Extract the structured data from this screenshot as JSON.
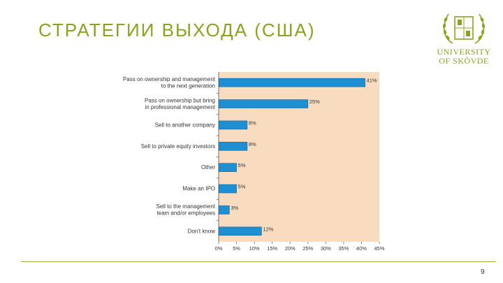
{
  "slide": {
    "title": "СТРАТЕГИИ ВЫХОДА (США)",
    "page_number": "9",
    "accent_color": "#8aa31f"
  },
  "logo": {
    "line1": "UNIVERSITY",
    "line2": "OF SKÖVDE",
    "icon": "laurel-wreath-crest-icon"
  },
  "chart_data": {
    "type": "bar",
    "orientation": "horizontal",
    "categories": [
      [
        "Pass on ownership and management",
        "to the next generation"
      ],
      [
        "Pass on ownership but bring",
        "in professional management"
      ],
      [
        "Sell to another company"
      ],
      [
        "Sell to private equity investors"
      ],
      [
        "Other"
      ],
      [
        "Make an IPO"
      ],
      [
        "Sell to the management",
        "team and/or employees"
      ],
      [
        "Don't know"
      ]
    ],
    "values": [
      41,
      25,
      8,
      8,
      5,
      5,
      3,
      12
    ],
    "data_labels": [
      "41%",
      "25%",
      "8%",
      "8%",
      "5%",
      "5%",
      "3%",
      "12%"
    ],
    "x_ticks": [
      "0%",
      "5%",
      "10%",
      "15%",
      "20%",
      "25%",
      "30%",
      "35%",
      "40%",
      "45%"
    ],
    "xlim": [
      0,
      45
    ],
    "grid": false,
    "colors": {
      "bar": "#1e8fd0",
      "bar_edge": "#1565a0",
      "plot_background": "#f9dcbf",
      "axis": "#555555"
    }
  }
}
